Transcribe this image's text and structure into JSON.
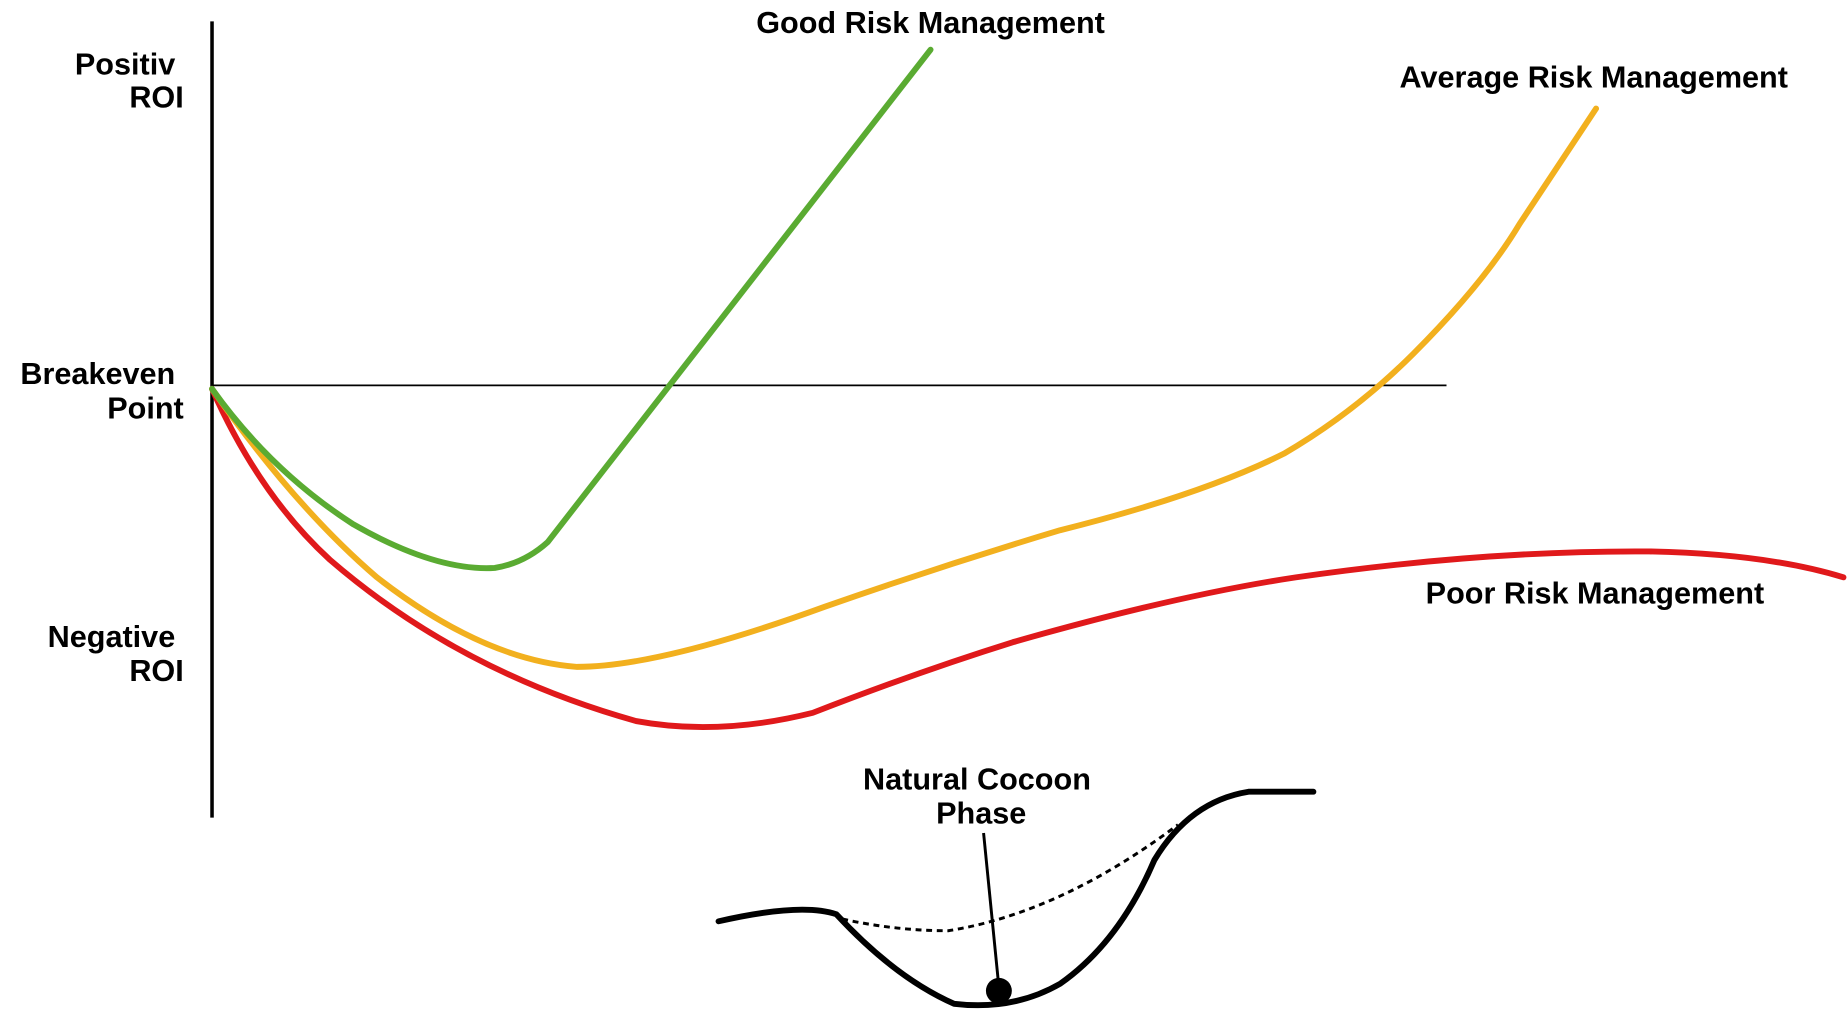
{
  "axis_labels": {
    "positive": [
      "Positiv",
      "ROI"
    ],
    "breakeven": [
      "Breakeven",
      "Point"
    ],
    "negative": [
      "Negative",
      "ROI"
    ]
  },
  "curves": {
    "good": "Good Risk Management",
    "average": "Average Risk Management",
    "poor": "Poor Risk Management"
  },
  "cocoon": [
    "Natural Cocoon",
    "Phase"
  ]
}
